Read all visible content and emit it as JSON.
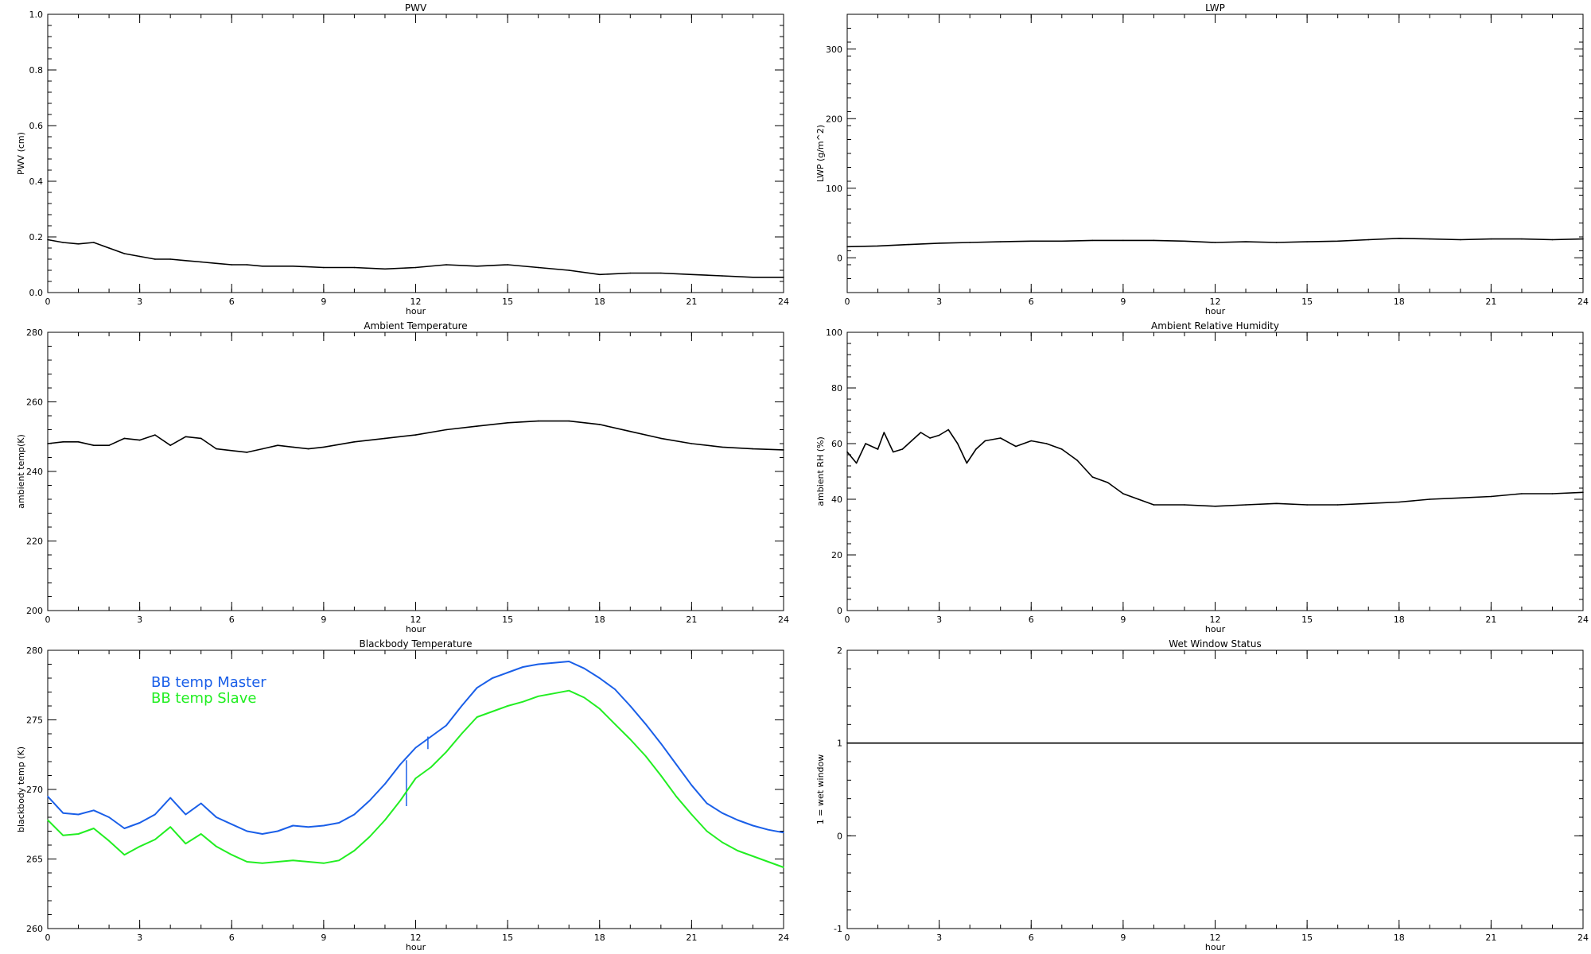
{
  "chart_data": [
    {
      "id": "pwv",
      "type": "line",
      "title": "PWV",
      "xlabel": "hour",
      "ylabel": "PWV (cm)",
      "xlim": [
        0,
        24
      ],
      "ylim": [
        0,
        1.0
      ],
      "xticks": [
        0,
        3,
        6,
        9,
        12,
        15,
        18,
        21,
        24
      ],
      "yticks": [
        0.0,
        0.2,
        0.4,
        0.6,
        0.8,
        1.0
      ],
      "ytick_labels": [
        "0.0",
        "0.2",
        "0.4",
        "0.6",
        "0.8",
        "1.0"
      ],
      "grid": false,
      "series": [
        {
          "color": "#000000",
          "x": [
            0,
            0.5,
            1,
            1.5,
            2,
            2.5,
            3,
            3.5,
            4,
            4.5,
            5,
            5.5,
            6,
            6.5,
            7,
            8,
            9,
            10,
            11,
            12,
            13,
            14,
            15,
            16,
            17,
            18,
            19,
            20,
            21,
            22,
            23,
            24
          ],
          "y": [
            0.19,
            0.18,
            0.175,
            0.18,
            0.16,
            0.14,
            0.13,
            0.12,
            0.12,
            0.115,
            0.11,
            0.105,
            0.1,
            0.1,
            0.095,
            0.095,
            0.09,
            0.09,
            0.085,
            0.09,
            0.1,
            0.095,
            0.1,
            0.09,
            0.08,
            0.065,
            0.07,
            0.07,
            0.065,
            0.06,
            0.055,
            0.055
          ]
        }
      ]
    },
    {
      "id": "lwp",
      "type": "line",
      "title": "LWP",
      "xlabel": "hour",
      "ylabel": "LWP (g/m^2)",
      "xlim": [
        0,
        24
      ],
      "ylim": [
        -50,
        350
      ],
      "xticks": [
        0,
        3,
        6,
        9,
        12,
        15,
        18,
        21,
        24
      ],
      "yticks": [
        0,
        100,
        200,
        300
      ],
      "ytick_labels": [
        "0",
        "100",
        "200",
        "300"
      ],
      "grid": false,
      "series": [
        {
          "color": "#000000",
          "x": [
            0,
            1,
            2,
            3,
            4,
            5,
            6,
            7,
            8,
            9,
            10,
            11,
            12,
            13,
            14,
            15,
            16,
            17,
            18,
            19,
            20,
            21,
            22,
            23,
            24
          ],
          "y": [
            16,
            17,
            19,
            21,
            22,
            23,
            24,
            24,
            25,
            25,
            25,
            24,
            22,
            23,
            22,
            23,
            24,
            26,
            28,
            27,
            26,
            27,
            27,
            26,
            27
          ]
        }
      ]
    },
    {
      "id": "ambient-temp",
      "type": "line",
      "title": "Ambient Temperature",
      "xlabel": "hour",
      "ylabel": "ambient temp(K)",
      "xlim": [
        0,
        24
      ],
      "ylim": [
        200,
        280
      ],
      "xticks": [
        0,
        3,
        6,
        9,
        12,
        15,
        18,
        21,
        24
      ],
      "yticks": [
        200,
        220,
        240,
        260,
        280
      ],
      "ytick_labels": [
        "200",
        "220",
        "240",
        "260",
        "280"
      ],
      "grid": false,
      "series": [
        {
          "color": "#000000",
          "x": [
            0,
            0.5,
            1,
            1.5,
            2,
            2.5,
            3,
            3.5,
            4,
            4.5,
            5,
            5.5,
            6,
            6.5,
            7,
            7.5,
            8,
            8.5,
            9,
            10,
            11,
            12,
            13,
            14,
            15,
            16,
            17,
            18,
            19,
            20,
            21,
            22,
            23,
            24
          ],
          "y": [
            248,
            248.5,
            248.5,
            247.5,
            247.5,
            249.5,
            249,
            250.5,
            247.5,
            250,
            249.5,
            246.5,
            246,
            245.5,
            246.5,
            247.5,
            247,
            246.5,
            247,
            248.5,
            249.5,
            250.5,
            252,
            253,
            254,
            254.5,
            254.5,
            253.5,
            251.5,
            249.5,
            248,
            247,
            246.5,
            246.2
          ]
        }
      ]
    },
    {
      "id": "ambient-rh",
      "type": "line",
      "title": "Ambient Relative Humidity",
      "xlabel": "hour",
      "ylabel": "ambient RH (%)",
      "xlim": [
        0,
        24
      ],
      "ylim": [
        0,
        100
      ],
      "xticks": [
        0,
        3,
        6,
        9,
        12,
        15,
        18,
        21,
        24
      ],
      "yticks": [
        0,
        20,
        40,
        60,
        80,
        100
      ],
      "ytick_labels": [
        "0",
        "20",
        "40",
        "60",
        "80",
        "100"
      ],
      "grid": false,
      "series": [
        {
          "color": "#000000",
          "x": [
            0,
            0.3,
            0.6,
            1,
            1.2,
            1.5,
            1.8,
            2.1,
            2.4,
            2.7,
            3,
            3.3,
            3.6,
            3.9,
            4.2,
            4.5,
            5,
            5.5,
            6,
            6.5,
            7,
            7.5,
            8,
            8.5,
            9,
            9.5,
            10,
            11,
            12,
            13,
            14,
            15,
            16,
            17,
            18,
            19,
            20,
            21,
            22,
            23,
            24
          ],
          "y": [
            57,
            53,
            60,
            58,
            64,
            57,
            58,
            61,
            64,
            62,
            63,
            65,
            60,
            53,
            58,
            61,
            62,
            59,
            61,
            60,
            58,
            54,
            48,
            46,
            42,
            40,
            38,
            38,
            37.5,
            38,
            38.5,
            38,
            38,
            38.5,
            39,
            40,
            40.5,
            41,
            42,
            42,
            42.5
          ]
        }
      ]
    },
    {
      "id": "bb-temp",
      "type": "line",
      "title": "Blackbody Temperature",
      "xlabel": "hour",
      "ylabel": "blackbody temp (K)",
      "xlim": [
        0,
        24
      ],
      "ylim": [
        260,
        280
      ],
      "xticks": [
        0,
        3,
        6,
        9,
        12,
        15,
        18,
        21,
        24
      ],
      "yticks": [
        260,
        265,
        270,
        275,
        280
      ],
      "ytick_labels": [
        "260",
        "265",
        "270",
        "275",
        "280"
      ],
      "grid": false,
      "legend_position": "top-left",
      "series": [
        {
          "name": "BB temp Master",
          "color": "#1a5fe8",
          "x": [
            0,
            0.5,
            1,
            1.5,
            2,
            2.5,
            3,
            3.5,
            4,
            4.5,
            5,
            5.5,
            6,
            6.5,
            7,
            7.5,
            8,
            8.5,
            9,
            9.5,
            10,
            10.5,
            11,
            11.5,
            12,
            12.5,
            13,
            13.5,
            14,
            14.5,
            15,
            15.5,
            16,
            16.5,
            17,
            17.5,
            18,
            18.5,
            19,
            19.5,
            20,
            20.5,
            21,
            21.5,
            22,
            22.5,
            23,
            23.5,
            24
          ],
          "y": [
            269.5,
            268.3,
            268.2,
            268.5,
            268.0,
            267.2,
            267.6,
            268.2,
            269.4,
            268.2,
            269.0,
            268.0,
            267.5,
            267.0,
            266.8,
            267.0,
            267.4,
            267.3,
            267.4,
            267.6,
            268.2,
            269.2,
            270.4,
            271.8,
            273.0,
            273.8,
            274.6,
            276.0,
            277.3,
            278.0,
            278.4,
            278.8,
            279.0,
            279.1,
            279.2,
            278.7,
            278.0,
            277.2,
            276.0,
            274.7,
            273.3,
            271.8,
            270.3,
            269.0,
            268.3,
            267.8,
            267.4,
            267.1,
            266.9
          ]
        },
        {
          "name": "BB temp Slave",
          "color": "#22ee22",
          "x": [
            0,
            0.5,
            1,
            1.5,
            2,
            2.5,
            3,
            3.5,
            4,
            4.5,
            5,
            5.5,
            6,
            6.5,
            7,
            7.5,
            8,
            8.5,
            9,
            9.5,
            10,
            10.5,
            11,
            11.5,
            12,
            12.5,
            13,
            13.5,
            14,
            14.5,
            15,
            15.5,
            16,
            16.5,
            17,
            17.5,
            18,
            18.5,
            19,
            19.5,
            20,
            20.5,
            21,
            21.5,
            22,
            22.5,
            23,
            23.5,
            24
          ],
          "y": [
            267.8,
            266.7,
            266.8,
            267.2,
            266.3,
            265.3,
            265.9,
            266.4,
            267.3,
            266.1,
            266.8,
            265.9,
            265.3,
            264.8,
            264.7,
            264.8,
            264.9,
            264.8,
            264.7,
            264.9,
            265.6,
            266.6,
            267.8,
            269.2,
            270.8,
            271.6,
            272.7,
            274.0,
            275.2,
            275.6,
            276.0,
            276.3,
            276.7,
            276.9,
            277.1,
            276.6,
            275.8,
            274.7,
            273.6,
            272.4,
            271.0,
            269.5,
            268.2,
            267.0,
            266.2,
            265.6,
            265.2,
            264.8,
            264.4
          ]
        }
      ],
      "spikes": [
        {
          "x": 11.7,
          "y1": 268.8,
          "y2": 272.1,
          "color": "#1a5fe8"
        },
        {
          "x": 12.4,
          "y1": 272.9,
          "y2": 273.8,
          "color": "#1a5fe8"
        }
      ]
    },
    {
      "id": "wet-window",
      "type": "line",
      "title": "Wet Window Status",
      "xlabel": "hour",
      "ylabel": "1 = wet window",
      "xlim": [
        0,
        24
      ],
      "ylim": [
        -1,
        2
      ],
      "xticks": [
        0,
        3,
        6,
        9,
        12,
        15,
        18,
        21,
        24
      ],
      "yticks": [
        -1,
        0,
        1,
        2
      ],
      "ytick_labels": [
        "-1",
        "0",
        "1",
        "2"
      ],
      "grid": false,
      "series": [
        {
          "color": "#000000",
          "x": [
            0,
            24
          ],
          "y": [
            1,
            1
          ]
        }
      ]
    }
  ]
}
